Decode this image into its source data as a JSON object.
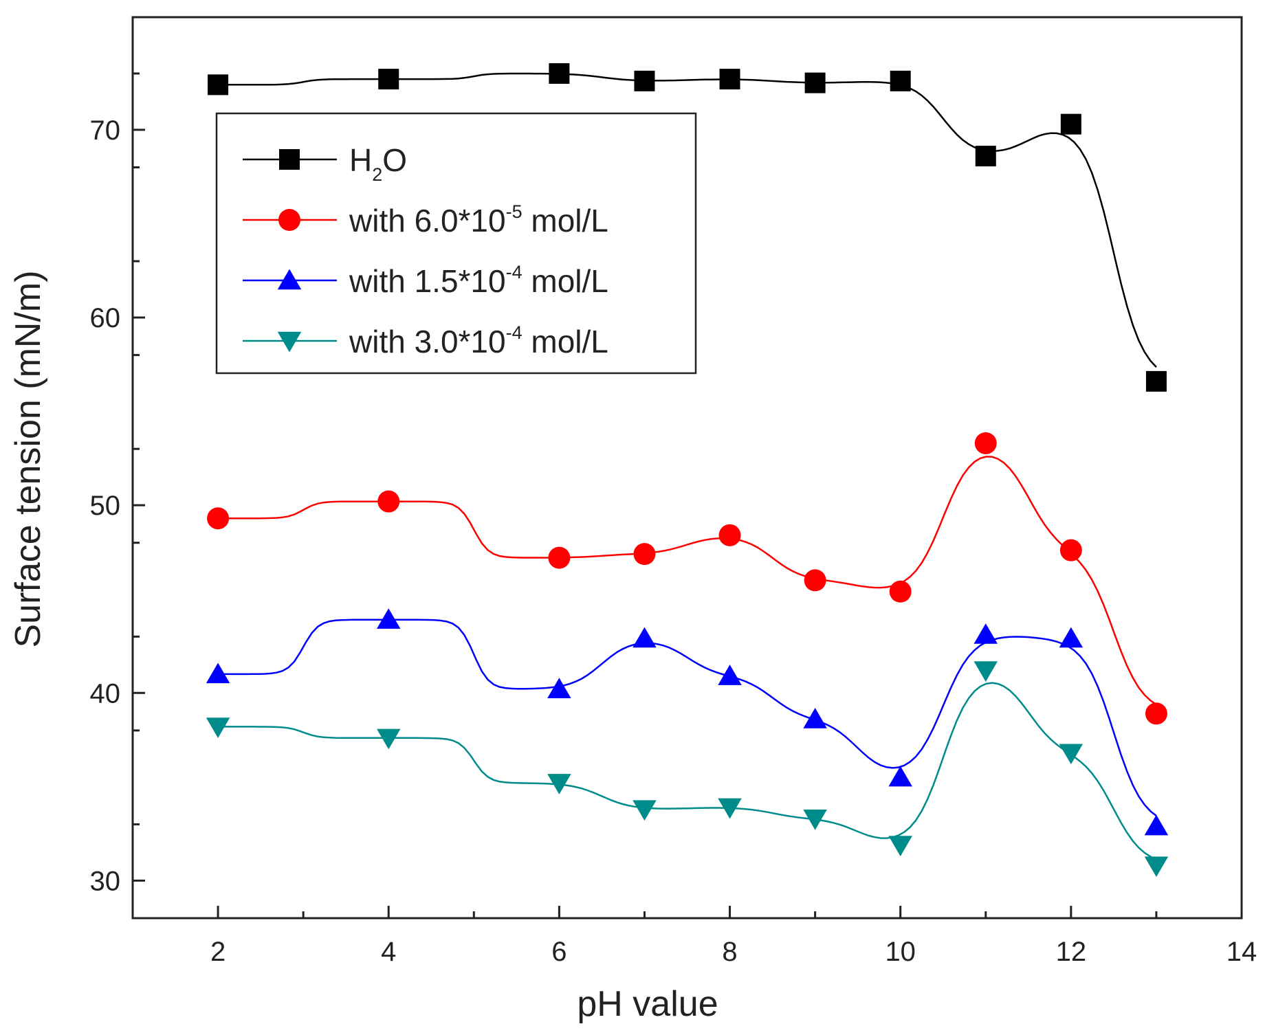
{
  "chart_data": {
    "type": "line",
    "title": "",
    "xlabel": "pH value",
    "ylabel": "Surface tension (mN/m)",
    "xlim": [
      1,
      14
    ],
    "ylim": [
      28,
      76
    ],
    "x_ticks": [
      2,
      4,
      6,
      8,
      10,
      12,
      14
    ],
    "y_ticks": [
      30,
      40,
      50,
      60,
      70
    ],
    "legend_position": "upper-left",
    "series": [
      {
        "name": "H2O",
        "legend": {
          "pre": "H",
          "sub": "2",
          "post": "O"
        },
        "marker": "square",
        "color": "#000000",
        "x": [
          2,
          4,
          6,
          7,
          8,
          9,
          10,
          11,
          12,
          13
        ],
        "values": [
          72.4,
          72.7,
          73.0,
          72.6,
          72.7,
          72.5,
          72.6,
          68.6,
          70.3,
          56.6
        ]
      },
      {
        "name": "with 6.0*10-5 mol/L",
        "legend": {
          "pre": "with 6.0*10",
          "sup": "-5",
          "post": " mol/L"
        },
        "marker": "circle",
        "color": "#ff0000",
        "x": [
          2,
          4,
          6,
          7,
          8,
          9,
          10,
          11,
          12,
          13
        ],
        "values": [
          49.3,
          50.2,
          47.2,
          47.4,
          48.4,
          46.0,
          45.4,
          53.3,
          47.6,
          38.9
        ]
      },
      {
        "name": "with 1.5*10-4 mol/L",
        "legend": {
          "pre": "with 1.5*10",
          "sup": "-4",
          "post": " mol/L"
        },
        "marker": "triangle-up",
        "color": "#0000ff",
        "x": [
          2,
          4,
          6,
          7,
          8,
          9,
          10,
          11,
          12,
          13
        ],
        "values": [
          41.0,
          43.9,
          40.2,
          42.9,
          40.9,
          38.6,
          35.5,
          43.1,
          42.9,
          32.9
        ]
      },
      {
        "name": "with 3.0*10-4 mol/L",
        "legend": {
          "pre": "with 3.0*10",
          "sup": "-4",
          "post": " mol/L"
        },
        "marker": "triangle-down",
        "color": "#008b8b",
        "x": [
          2,
          4,
          6,
          7,
          8,
          9,
          10,
          11,
          12,
          13
        ],
        "values": [
          38.2,
          37.6,
          35.2,
          33.8,
          33.9,
          33.3,
          31.9,
          41.2,
          36.8,
          30.8
        ]
      }
    ]
  }
}
